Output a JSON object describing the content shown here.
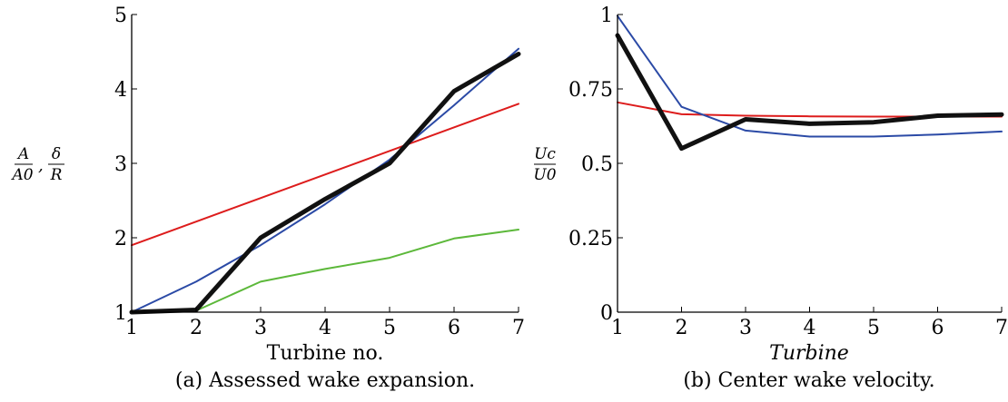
{
  "chart_data": [
    {
      "type": "line",
      "id": "a",
      "title": "",
      "caption": "(a) Assessed wake expansion.",
      "xlabel": "Turbine no.",
      "ylabel_parts": {
        "num1": "A",
        "den1": "A0",
        "sep": ",",
        "num2": "δ",
        "den2": "R"
      },
      "xlim": [
        1,
        7
      ],
      "ylim": [
        1,
        5
      ],
      "xticks": [
        1,
        2,
        3,
        4,
        5,
        6,
        7
      ],
      "yticks": [
        1,
        2,
        3,
        4,
        5
      ],
      "grid": false,
      "series": [
        {
          "color": "#dd1c1c",
          "width": 2,
          "x": [
            1,
            7
          ],
          "y": [
            1.9,
            3.8
          ]
        },
        {
          "color": "#2b4aa6",
          "width": 2,
          "x": [
            1,
            2,
            3,
            4,
            5,
            6,
            7
          ],
          "y": [
            1.0,
            1.41,
            1.9,
            2.45,
            3.05,
            3.78,
            4.54
          ]
        },
        {
          "color": "#5cb83a",
          "width": 2,
          "x": [
            1,
            2,
            3,
            4,
            5,
            6,
            7
          ],
          "y": [
            1.0,
            1.02,
            1.41,
            1.58,
            1.73,
            1.99,
            2.11
          ]
        },
        {
          "color": "#111111",
          "width": 5,
          "x": [
            1,
            2,
            3,
            4,
            5,
            6,
            7
          ],
          "y": [
            1.0,
            1.03,
            2.0,
            2.52,
            3.0,
            3.97,
            4.47
          ]
        }
      ]
    },
    {
      "type": "line",
      "id": "b",
      "title": "",
      "caption": "(b) Center wake velocity.",
      "xlabel": "Turbine",
      "ylabel_parts": {
        "num1": "Uc",
        "den1": "U0"
      },
      "xlim": [
        1,
        7
      ],
      "ylim": [
        0,
        1
      ],
      "xticks": [
        1,
        2,
        3,
        4,
        5,
        6,
        7
      ],
      "yticks": [
        0,
        0.25,
        0.5,
        0.75,
        1
      ],
      "ytick_labels": [
        "0",
        "0.25",
        "0.5",
        "0.75",
        "1"
      ],
      "grid": false,
      "series": [
        {
          "color": "#dd1c1c",
          "width": 2,
          "x": [
            1,
            2,
            3,
            4,
            5,
            6,
            7
          ],
          "y": [
            0.705,
            0.665,
            0.66,
            0.658,
            0.657,
            0.657,
            0.657
          ]
        },
        {
          "color": "#2b4aa6",
          "width": 2,
          "x": [
            1,
            2,
            3,
            4,
            5,
            6,
            7
          ],
          "y": [
            0.995,
            0.69,
            0.61,
            0.59,
            0.59,
            0.597,
            0.607
          ]
        },
        {
          "color": "#111111",
          "width": 5,
          "x": [
            1,
            2,
            3,
            4,
            5,
            6,
            7
          ],
          "y": [
            0.93,
            0.55,
            0.648,
            0.633,
            0.638,
            0.66,
            0.664
          ]
        }
      ]
    }
  ]
}
